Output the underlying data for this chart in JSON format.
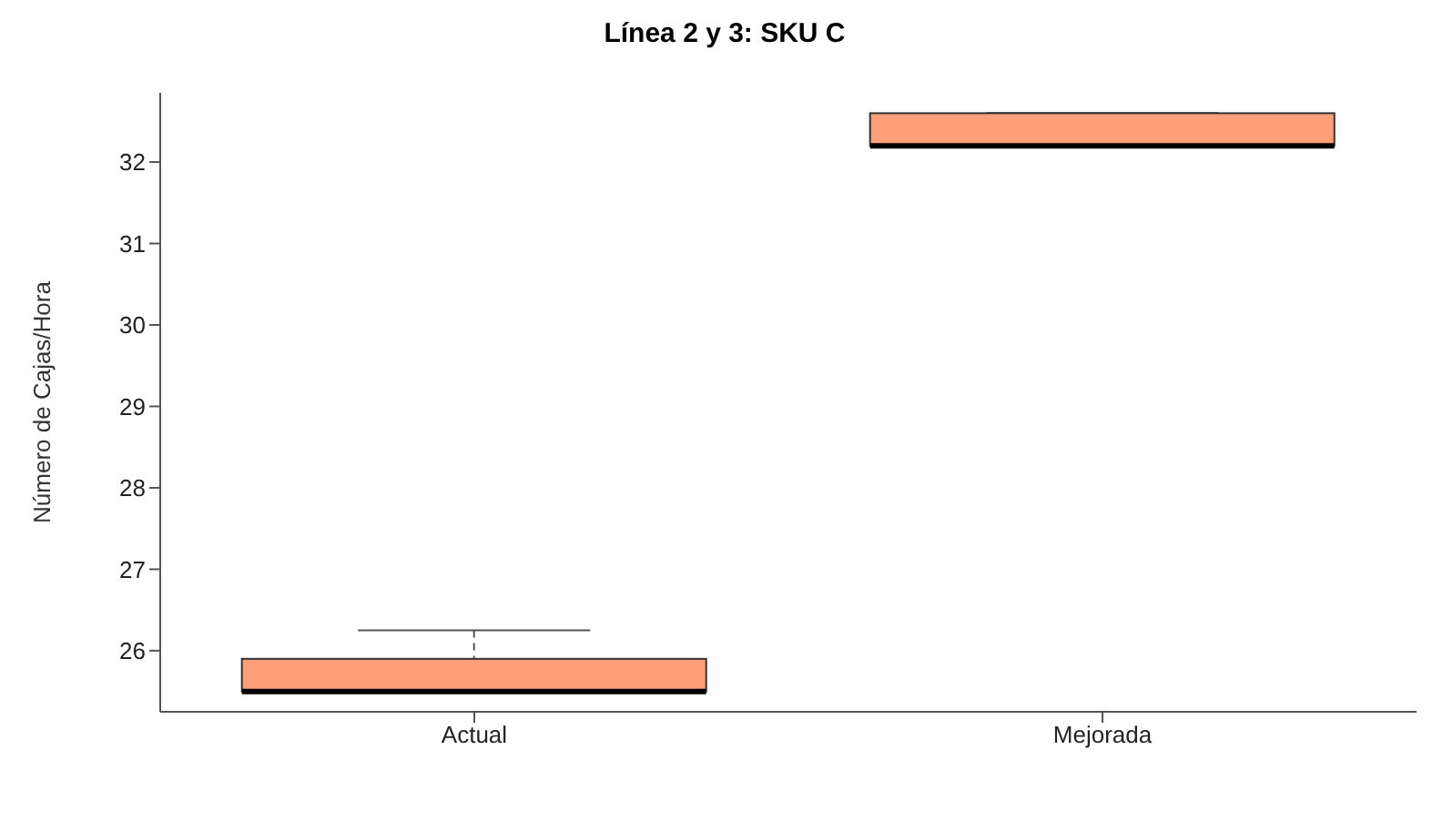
{
  "chart_data": {
    "type": "box",
    "title": "Línea 2 y 3: SKU C",
    "ylabel": "Número de Cajas/Hora",
    "categories": [
      "Actual",
      "Mejorada"
    ],
    "color": "#ff9f7a",
    "boxes": [
      {
        "low": 25.5,
        "q1": 25.5,
        "median": 25.5,
        "q3": 25.9,
        "high": 26.25
      },
      {
        "low": 32.2,
        "q1": 32.2,
        "median": 32.2,
        "q3": 32.6,
        "high": 32.6
      }
    ],
    "ylim": [
      25.25,
      32.85
    ],
    "yticks": [
      26,
      27,
      28,
      29,
      30,
      31,
      32
    ]
  }
}
